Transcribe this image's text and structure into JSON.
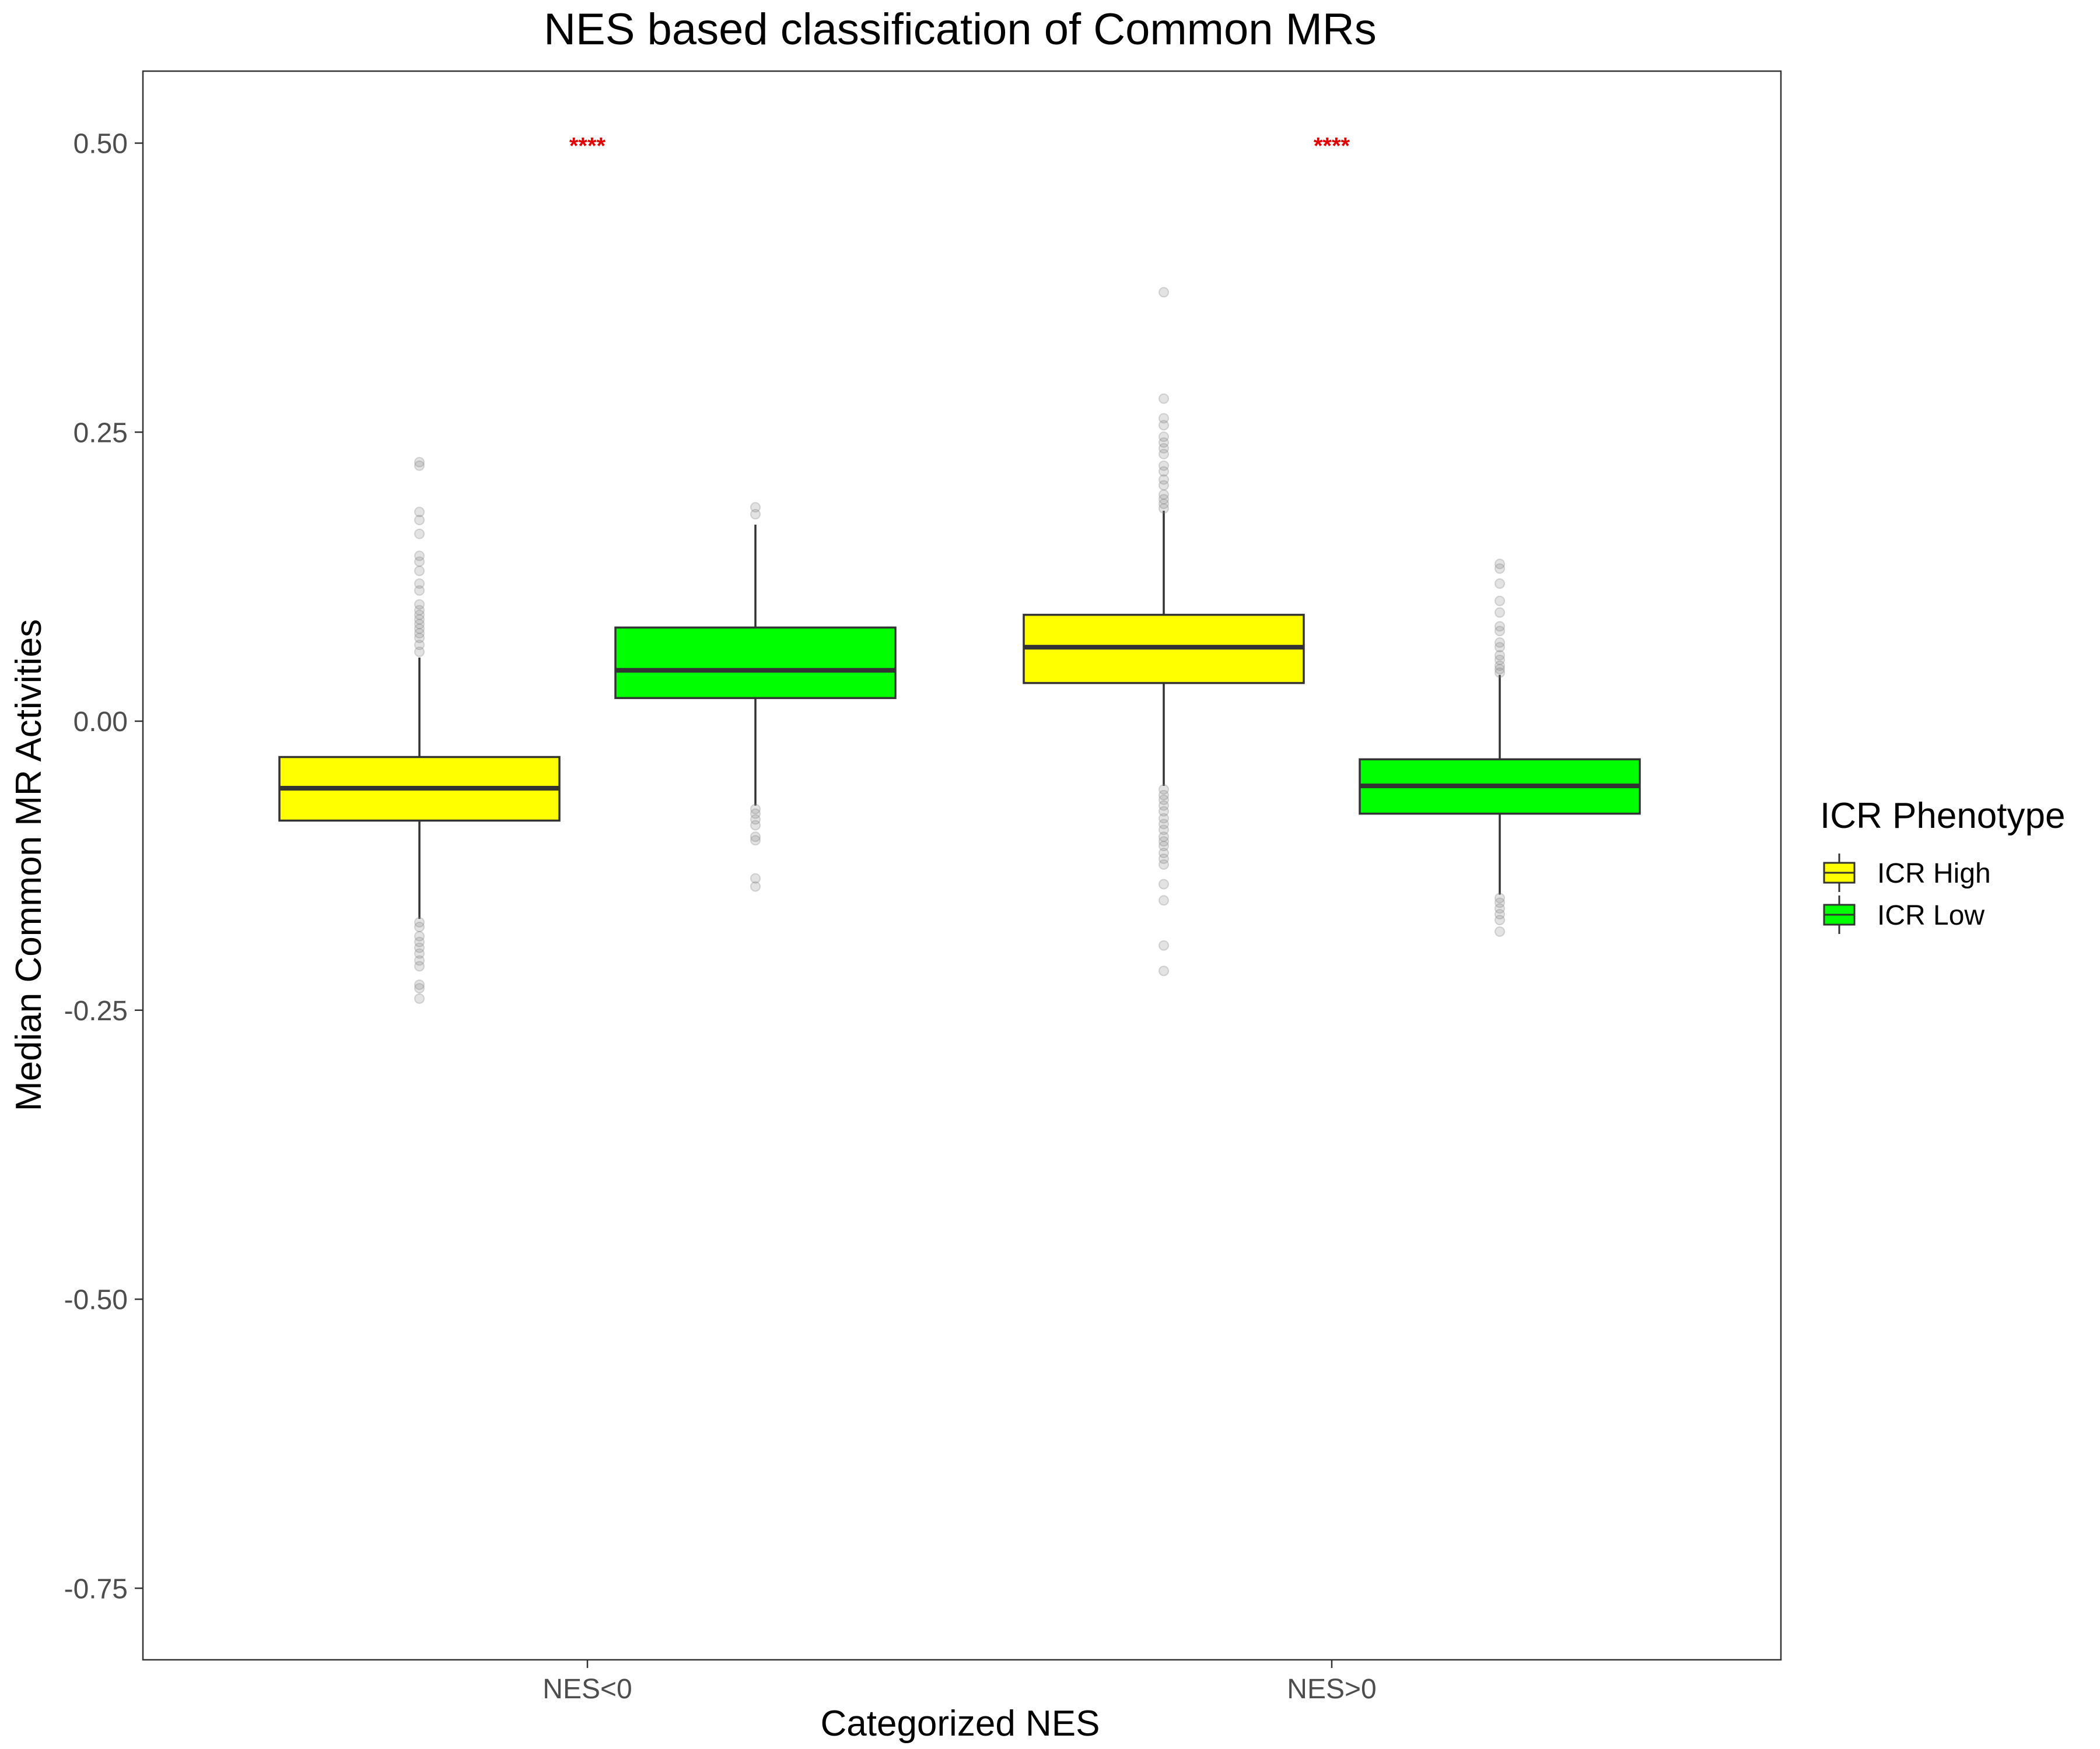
{
  "chart_data": {
    "type": "box",
    "title": "NES based classification of Common MRs",
    "xlabel": "Categorized NES",
    "ylabel": "Median Common MR Activities",
    "categories": [
      "NES<0",
      "NES>0"
    ],
    "ylim": [
      -0.81,
      0.56
    ],
    "yticks": [
      0.5,
      0.25,
      0.0,
      -0.25,
      -0.5,
      -0.75
    ],
    "ytick_labels": [
      "0.50",
      "0.25",
      "0.00",
      "-0.25",
      "-0.50",
      "-0.75"
    ],
    "grid": false,
    "legend": {
      "title": "ICR Phenotype",
      "placement": "right",
      "entries": [
        "ICR High",
        "ICR Low"
      ]
    },
    "colors": {
      "ICR High": "#ffff00",
      "ICR Low": "#00ff00",
      "significance": "#e00000",
      "outlier": "#808080"
    },
    "significance": [
      {
        "category": "NES<0",
        "label": "****",
        "y": 0.5
      },
      {
        "category": "NES>0",
        "label": "****",
        "y": 0.5
      }
    ],
    "series": [
      {
        "name": "ICR High",
        "boxes": [
          {
            "category": "NES<0",
            "q1": -0.086,
            "median": -0.058,
            "q3": -0.031,
            "whisker_low": -0.171,
            "whisker_high": 0.055,
            "outliers": [
              0.224,
              0.221,
              0.181,
              0.174,
              0.162,
              0.143,
              0.138,
              0.13,
              0.119,
              0.113,
              0.101,
              0.096,
              0.092,
              0.088,
              0.084,
              0.08,
              0.076,
              0.072,
              0.066,
              0.06,
              -0.174,
              -0.178,
              -0.186,
              -0.191,
              -0.196,
              -0.201,
              -0.207,
              -0.212,
              -0.228,
              -0.231,
              -0.24
            ]
          },
          {
            "category": "NES>0",
            "q1": 0.033,
            "median": 0.064,
            "q3": 0.092,
            "whisker_low": -0.056,
            "whisker_high": 0.182,
            "outliers": [
              0.371,
              0.279,
              0.262,
              0.256,
              0.246,
              0.241,
              0.236,
              0.231,
              0.221,
              0.216,
              0.209,
              0.204,
              0.196,
              0.192,
              0.188,
              0.184,
              -0.059,
              -0.064,
              -0.068,
              -0.073,
              -0.078,
              -0.084,
              -0.089,
              -0.094,
              -0.1,
              -0.104,
              -0.108,
              -0.114,
              -0.119,
              -0.124,
              -0.141,
              -0.155,
              -0.194,
              -0.216
            ]
          }
        ]
      },
      {
        "name": "ICR Low",
        "boxes": [
          {
            "category": "NES<0",
            "q1": 0.02,
            "median": 0.044,
            "q3": 0.081,
            "whisker_low": -0.073,
            "whisker_high": 0.17,
            "outliers": [
              0.185,
              0.179,
              -0.076,
              -0.08,
              -0.085,
              -0.09,
              -0.1,
              -0.103,
              -0.136,
              -0.143
            ]
          },
          {
            "category": "NES>0",
            "q1": -0.08,
            "median": -0.056,
            "q3": -0.033,
            "whisker_low": -0.15,
            "whisker_high": 0.04,
            "outliers": [
              0.136,
              0.132,
              0.119,
              0.104,
              0.094,
              0.082,
              0.078,
              0.068,
              0.064,
              0.057,
              0.053,
              0.048,
              0.045,
              0.042,
              -0.153,
              -0.157,
              -0.162,
              -0.167,
              -0.172,
              -0.182
            ]
          }
        ]
      }
    ]
  }
}
